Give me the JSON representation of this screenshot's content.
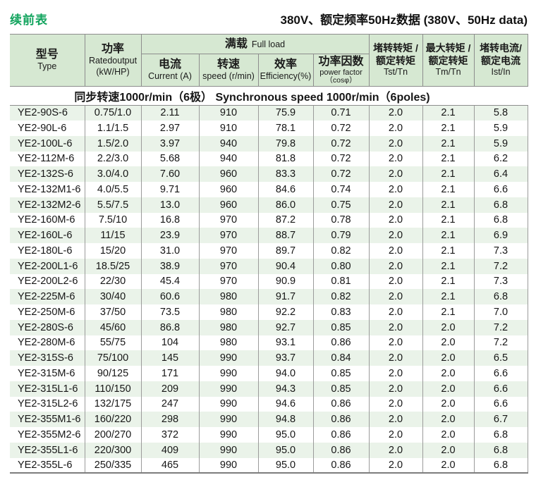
{
  "page": {
    "continued_label": "续前表",
    "title": "380V、额定频率50Hz数据 (380V、50Hz data)"
  },
  "table": {
    "headers": {
      "type_zh": "型号",
      "type_en": "Type",
      "power_zh": "功率",
      "power_en": "Ratedoutput",
      "power_unit": "(kW/HP)",
      "full_load_zh": "满载",
      "full_load_en": "Full load",
      "current_zh": "电流",
      "current_en": "Current (A)",
      "speed_zh": "转速",
      "speed_en": "speed (r/min)",
      "efficiency_zh": "效率",
      "efficiency_en": "Efficiency(%)",
      "power_factor_zh": "功率因数",
      "power_factor_en": "power factor",
      "power_factor_unit": "（cosφ）",
      "tst_zh1": "堵转转矩 /",
      "tst_zh2": "额定转矩",
      "tst_en": "Tst/Tn",
      "tm_zh1": "最大转矩 /",
      "tm_zh2": "额定转矩",
      "tm_en": "Tm/Tn",
      "ist_zh1": "堵转电流/",
      "ist_zh2": "额定电流",
      "ist_en": "Ist/In"
    },
    "section_label": "同步转速1000r/min（6极） Synchronous speed 1000r/min（6poles)",
    "column_keys": [
      "type",
      "rated-output",
      "current",
      "speed",
      "efficiency",
      "power-factor",
      "tst-tn",
      "tm-tn",
      "ist-in"
    ],
    "rows": [
      [
        "YE2-90S-6",
        "0.75/1.0",
        "2.11",
        "910",
        "75.9",
        "0.71",
        "2.0",
        "2.1",
        "5.8"
      ],
      [
        "YE2-90L-6",
        "1.1/1.5",
        "2.97",
        "910",
        "78.1",
        "0.72",
        "2.0",
        "2.1",
        "5.9"
      ],
      [
        "YE2-100L-6",
        "1.5/2.0",
        "3.97",
        "940",
        "79.8",
        "0.72",
        "2.0",
        "2.1",
        "5.9"
      ],
      [
        "YE2-112M-6",
        "2.2/3.0",
        "5.68",
        "940",
        "81.8",
        "0.72",
        "2.0",
        "2.1",
        "6.2"
      ],
      [
        "YE2-132S-6",
        "3.0/4.0",
        "7.60",
        "960",
        "83.3",
        "0.72",
        "2.0",
        "2.1",
        "6.4"
      ],
      [
        "YE2-132M1-6",
        "4.0/5.5",
        "9.71",
        "960",
        "84.6",
        "0.74",
        "2.0",
        "2.1",
        "6.6"
      ],
      [
        "YE2-132M2-6",
        "5.5/7.5",
        "13.0",
        "960",
        "86.0",
        "0.75",
        "2.0",
        "2.1",
        "6.8"
      ],
      [
        "YE2-160M-6",
        "7.5/10",
        "16.8",
        "970",
        "87.2",
        "0.78",
        "2.0",
        "2.1",
        "6.8"
      ],
      [
        "YE2-160L-6",
        "11/15",
        "23.9",
        "970",
        "88.7",
        "0.79",
        "2.0",
        "2.1",
        "6.9"
      ],
      [
        "YE2-180L-6",
        "15/20",
        "31.0",
        "970",
        "89.7",
        "0.82",
        "2.0",
        "2.1",
        "7.3"
      ],
      [
        "YE2-200L1-6",
        "18.5/25",
        "38.9",
        "970",
        "90.4",
        "0.80",
        "2.0",
        "2.1",
        "7.2"
      ],
      [
        "YE2-200L2-6",
        "22/30",
        "45.4",
        "970",
        "90.9",
        "0.81",
        "2.0",
        "2.1",
        "7.3"
      ],
      [
        "YE2-225M-6",
        "30/40",
        "60.6",
        "980",
        "91.7",
        "0.82",
        "2.0",
        "2.1",
        "6.8"
      ],
      [
        "YE2-250M-6",
        "37/50",
        "73.5",
        "980",
        "92.2",
        "0.83",
        "2.0",
        "2.1",
        "7.0"
      ],
      [
        "YE2-280S-6",
        "45/60",
        "86.8",
        "980",
        "92.7",
        "0.85",
        "2.0",
        "2.0",
        "7.2"
      ],
      [
        "YE2-280M-6",
        "55/75",
        "104",
        "980",
        "93.1",
        "0.86",
        "2.0",
        "2.0",
        "7.2"
      ],
      [
        "YE2-315S-6",
        "75/100",
        "145",
        "990",
        "93.7",
        "0.84",
        "2.0",
        "2.0",
        "6.5"
      ],
      [
        "YE2-315M-6",
        "90/125",
        "171",
        "990",
        "94.0",
        "0.85",
        "2.0",
        "2.0",
        "6.6"
      ],
      [
        "YE2-315L1-6",
        "110/150",
        "209",
        "990",
        "94.3",
        "0.85",
        "2.0",
        "2.0",
        "6.6"
      ],
      [
        "YE2-315L2-6",
        "132/175",
        "247",
        "990",
        "94.6",
        "0.86",
        "2.0",
        "2.0",
        "6.6"
      ],
      [
        "YE2-355M1-6",
        "160/220",
        "298",
        "990",
        "94.8",
        "0.86",
        "2.0",
        "2.0",
        "6.7"
      ],
      [
        "YE2-355M2-6",
        "200/270",
        "372",
        "990",
        "95.0",
        "0.86",
        "2.0",
        "2.0",
        "6.8"
      ],
      [
        "YE2-355L1-6",
        "220/300",
        "409",
        "990",
        "95.0",
        "0.86",
        "2.0",
        "2.0",
        "6.8"
      ],
      [
        "YE2-355L-6",
        "250/335",
        "465",
        "990",
        "95.0",
        "0.86",
        "2.0",
        "2.0",
        "6.8"
      ]
    ]
  },
  "colors": {
    "header_bg": "#d6e8d2",
    "stripe_bg": "#eaf3e9",
    "accent_green": "#12a45e",
    "border": "#8d8d8d"
  }
}
